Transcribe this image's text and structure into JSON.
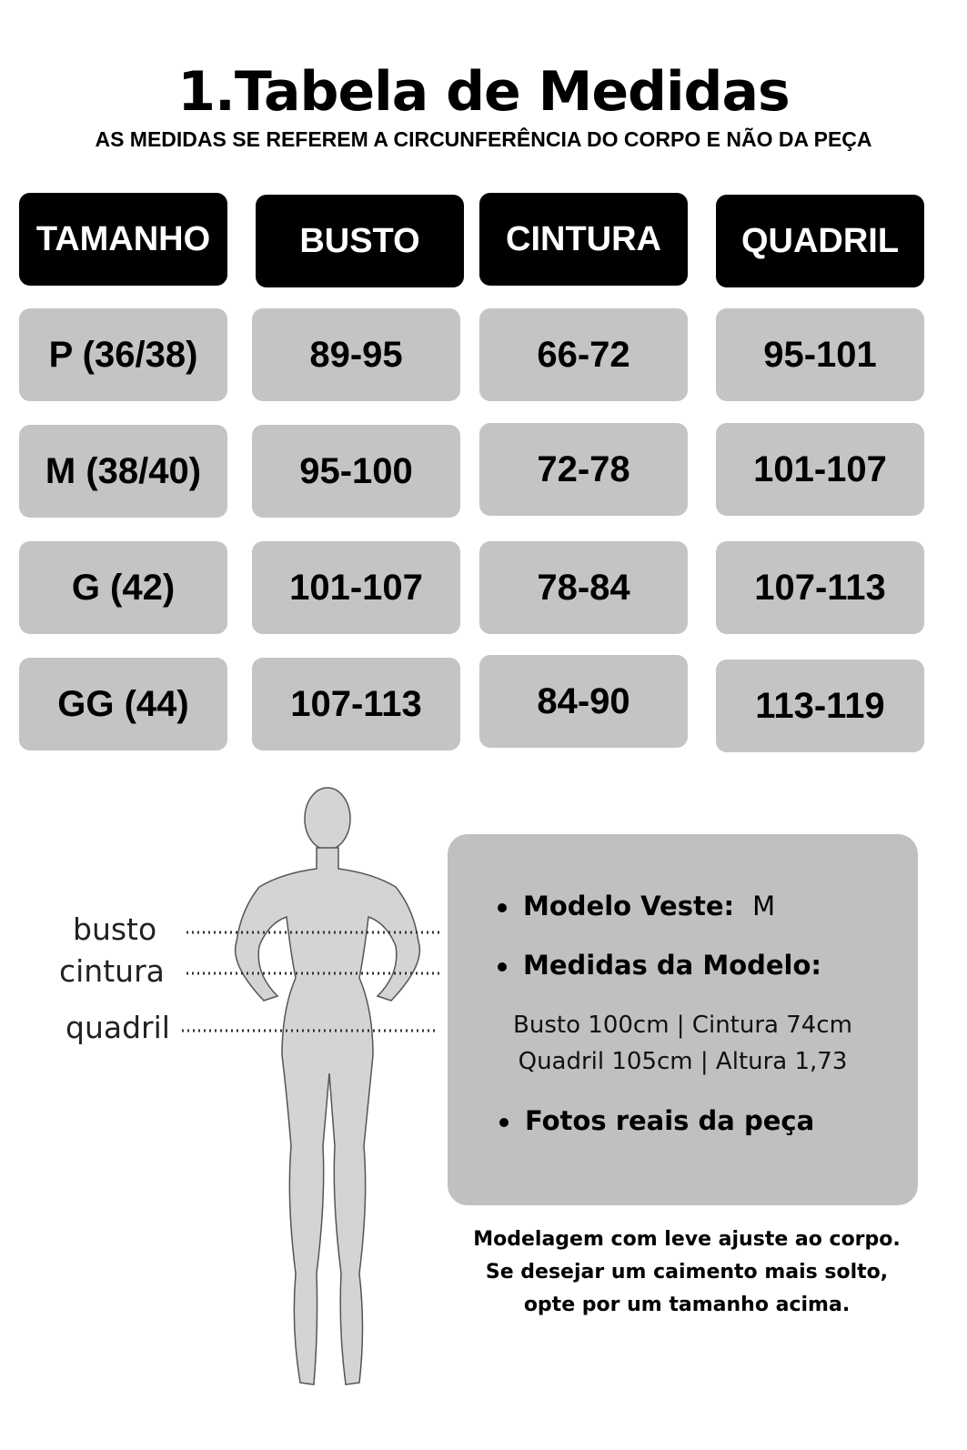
{
  "header": {
    "title": "1.Tabela de Medidas",
    "subtitle": "AS MEDIDAS SE REFEREM A CIRCUNFERÊNCIA DO CORPO E NÃO DA PEÇA"
  },
  "table": {
    "columns": [
      "TAMANHO",
      "BUSTO",
      "CINTURA",
      "QUADRIL"
    ],
    "rows": [
      [
        "P (36/38)",
        "89-95",
        "66-72",
        "95-101"
      ],
      [
        "M (38/40)",
        "95-100",
        "72-78",
        "101-107"
      ],
      [
        "G (42)",
        "101-107",
        "78-84",
        "107-113"
      ],
      [
        "GG (44)",
        "107-113",
        "84-90",
        "113-119"
      ]
    ]
  },
  "figure": {
    "labels": [
      "busto",
      "cintura",
      "quadril"
    ]
  },
  "info": {
    "modelo_veste_label": "Modelo Veste:",
    "modelo_veste_value": "M",
    "medidas_label": "Medidas da Modelo:",
    "medidas_line1": "Busto 100cm | Cintura 74cm",
    "medidas_line2": "Quadril 105cm | Altura 1,73",
    "fotos_label": "Fotos reais da peça"
  },
  "note": [
    "Modelagem com leve ajuste ao corpo.",
    "Se desejar um caimento mais solto,",
    "opte por um  tamanho acima."
  ],
  "colors": {
    "header_bg": "#000000",
    "cell_bg": "#c4c4c4",
    "info_bg": "#c0c0c0"
  }
}
